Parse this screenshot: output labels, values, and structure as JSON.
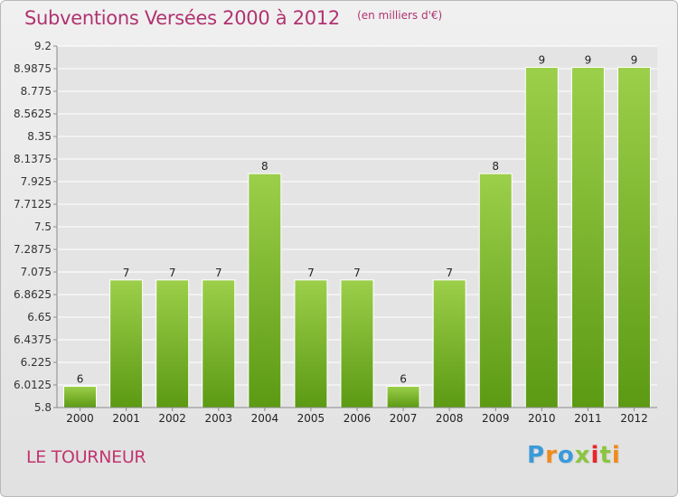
{
  "header": {
    "title": "Subventions Versées 2000 à 2012",
    "subtitle": "(en milliers d'€)"
  },
  "footer": {
    "commune": "LE TOURNEUR",
    "brand": "Proxiti"
  },
  "colors": {
    "title": "#b03371",
    "bar_top": "#9ccf4a",
    "bar_bottom": "#5c9a14",
    "brand_letters": [
      "#3b9ad9",
      "#f08a1e",
      "#3b9ad9",
      "#8bc53f",
      "#e8262a",
      "#8bc53f",
      "#f08a1e"
    ]
  },
  "chart_data": {
    "type": "bar",
    "title": "Subventions Versées 2000 à 2012",
    "subtitle": "(en milliers d'€)",
    "xlabel": "",
    "ylabel": "",
    "categories": [
      "2000",
      "2001",
      "2002",
      "2003",
      "2004",
      "2005",
      "2006",
      "2007",
      "2008",
      "2009",
      "2010",
      "2011",
      "2012"
    ],
    "values": [
      6,
      7,
      7,
      7,
      8,
      7,
      7,
      6,
      7,
      8,
      9,
      9,
      9
    ],
    "data_labels": [
      "6",
      "7",
      "7",
      "7",
      "8",
      "7",
      "7",
      "6",
      "7",
      "8",
      "9",
      "9",
      "9"
    ],
    "ylim": [
      5.8,
      9.2
    ],
    "yticks": [
      "5.8",
      "6.0125",
      "6.225",
      "6.4375",
      "6.65",
      "6.8625",
      "7.075",
      "7.2875",
      "7.5",
      "7.7125",
      "7.925",
      "8.1375",
      "8.35",
      "8.5625",
      "8.775",
      "8.9875",
      "9.2"
    ],
    "grid": true,
    "legend": "none"
  }
}
